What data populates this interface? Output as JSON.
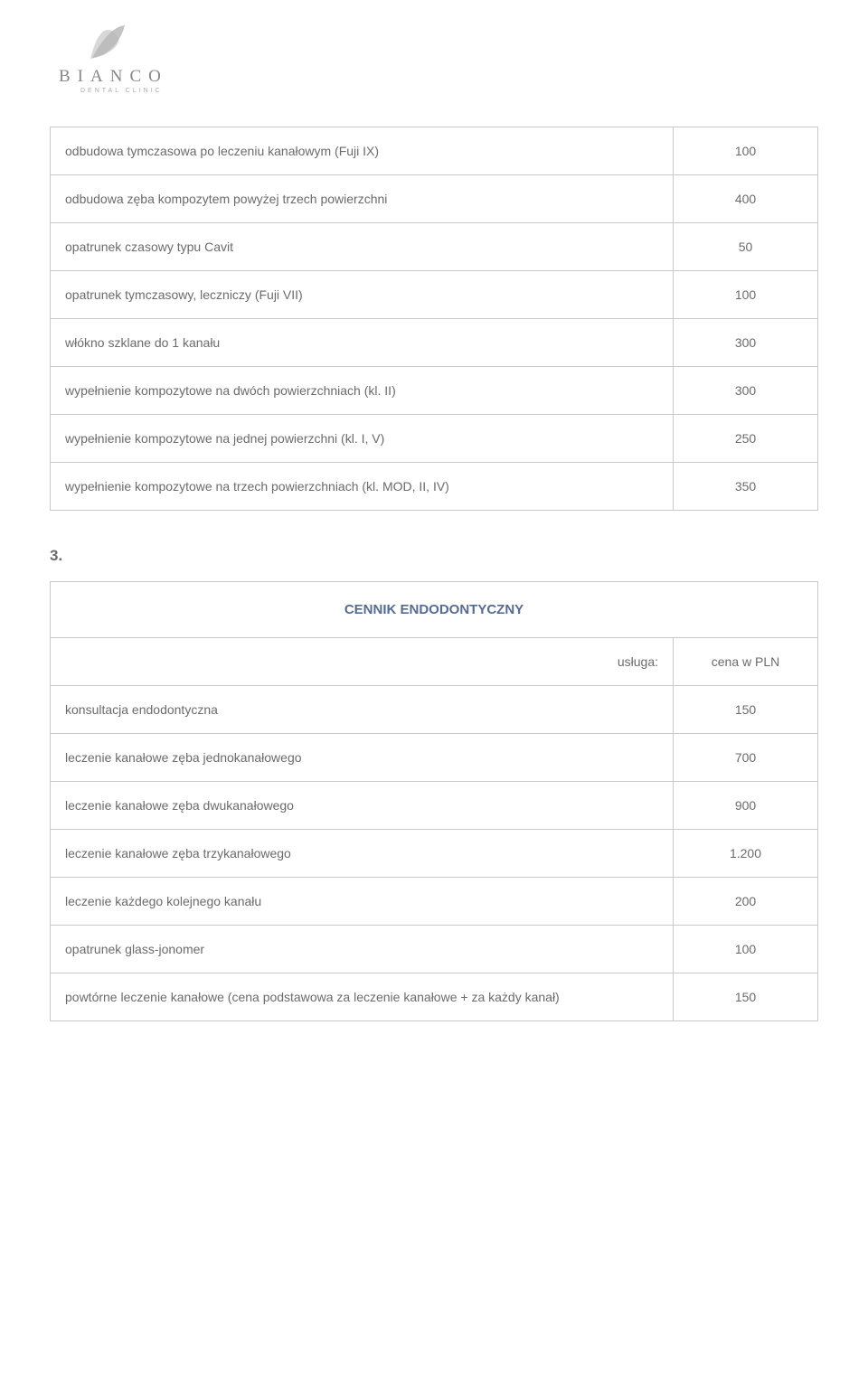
{
  "logo": {
    "brand_letters": "BIANCO",
    "subtitle": "DENTAL CLINIC",
    "icon_color_light": "#d8d8d8",
    "icon_color_dark": "#a8a8a8"
  },
  "table1": {
    "rows": [
      {
        "label": "odbudowa tymczasowa po leczeniu kanałowym (Fuji IX)",
        "price": "100"
      },
      {
        "label": "odbudowa zęba kompozytem powyżej trzech powierzchni",
        "price": "400"
      },
      {
        "label": "opatrunek czasowy typu Cavit",
        "price": "50"
      },
      {
        "label": "opatrunek tymczasowy, leczniczy (Fuji VII)",
        "price": "100"
      },
      {
        "label": "włókno szklane do 1 kanału",
        "price": "300"
      },
      {
        "label": "wypełnienie kompozytowe na dwóch powierzchniach (kl. II)",
        "price": "300"
      },
      {
        "label": "wypełnienie kompozytowe na jednej powierzchni (kl. I, V)",
        "price": "250"
      },
      {
        "label": "wypełnienie kompozytowe na trzech powierzchniach (kl. MOD, II, IV)",
        "price": "350"
      }
    ]
  },
  "section2": {
    "number": "3.",
    "title": "CENNIK ENDODONTYCZNY",
    "col_service": "usługa:",
    "col_price": "cena w PLN",
    "rows": [
      {
        "label": "konsultacja endodontyczna",
        "price": "150"
      },
      {
        "label": "leczenie kanałowe zęba jednokanałowego",
        "price": "700"
      },
      {
        "label": "leczenie kanałowe zęba dwukanałowego",
        "price": "900"
      },
      {
        "label": "leczenie kanałowe zęba trzykanałowego",
        "price": "1.200"
      },
      {
        "label": "leczenie każdego kolejnego kanału",
        "price": "200"
      },
      {
        "label": "opatrunek glass-jonomer",
        "price": "100"
      },
      {
        "label": "powtórne leczenie kanałowe (cena podstawowa za leczenie kanałowe + za każdy kanał)",
        "price": "150"
      }
    ]
  },
  "colors": {
    "text": "#6b6b6b",
    "border": "#c9c9c9",
    "header_text": "#556b8f",
    "background": "#ffffff"
  }
}
